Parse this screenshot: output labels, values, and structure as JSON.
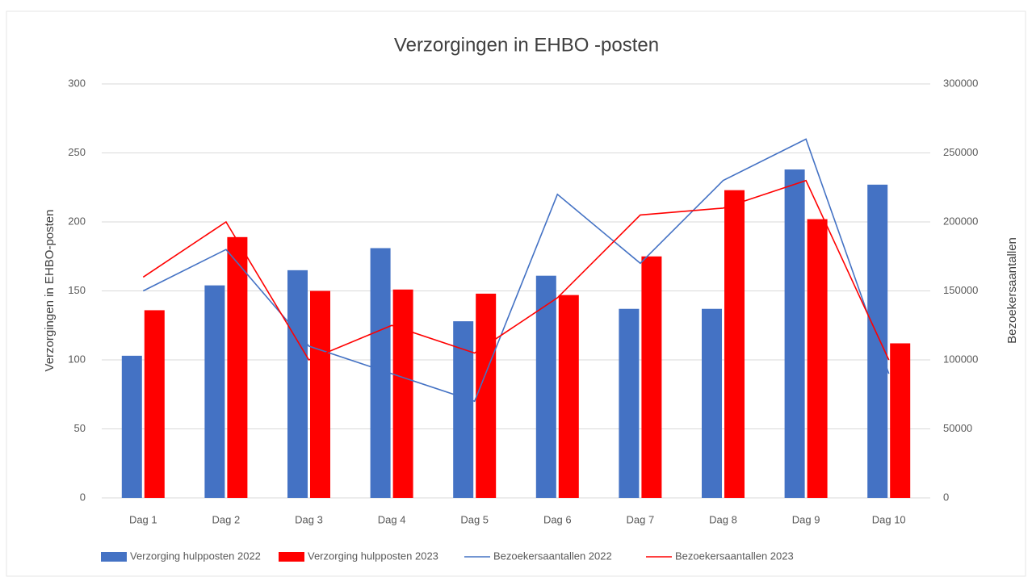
{
  "chart_data": {
    "type": "bar",
    "title": "Verzorgingen in EHBO -posten",
    "y_label": "Verzorgingen in EHBO-posten",
    "y2_label": "Bezoekersaantallen",
    "categories": [
      "Dag 1",
      "Dag 2",
      "Dag 3",
      "Dag 4",
      "Dag 5",
      "Dag 6",
      "Dag 7",
      "Dag 8",
      "Dag 9",
      "Dag 10"
    ],
    "series": [
      {
        "name": "Verzorging hulpposten 2022",
        "type": "bar",
        "color": "#4472c4",
        "values": [
          103,
          154,
          165,
          181,
          128,
          161,
          137,
          137,
          238,
          227
        ]
      },
      {
        "name": "Verzorging hulpposten 2023",
        "type": "bar",
        "color": "#ff0000",
        "values": [
          136,
          189,
          150,
          151,
          148,
          147,
          175,
          223,
          202,
          112
        ]
      },
      {
        "name": "Bezoekersaantallen 2022",
        "type": "line",
        "axis": "y2",
        "color": "#4472c4",
        "values": [
          150000,
          180000,
          110000,
          90000,
          70000,
          220000,
          170000,
          230000,
          260000,
          90000
        ]
      },
      {
        "name": "Bezoekersaantallen 2023",
        "type": "line",
        "axis": "y2",
        "color": "#ff0000",
        "values": [
          160000,
          200000,
          100000,
          125000,
          105000,
          145000,
          205000,
          210000,
          230000,
          100000
        ]
      }
    ],
    "ylim": [
      0,
      300
    ],
    "yticks": [
      0,
      50,
      100,
      150,
      200,
      250,
      300
    ],
    "y2lim": [
      0,
      300000
    ],
    "y2ticks": [
      0,
      50000,
      100000,
      150000,
      200000,
      250000,
      300000
    ],
    "grid": true,
    "legend": "bottom"
  }
}
